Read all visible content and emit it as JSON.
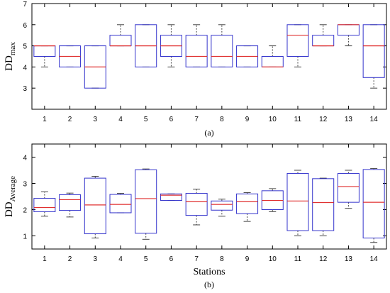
{
  "chart_data": [
    {
      "type": "boxplot",
      "caption": "(a)",
      "ylabel_main": "DD",
      "ylabel_sub": "max",
      "xlabel": "",
      "categories": [
        "1",
        "2",
        "3",
        "4",
        "5",
        "6",
        "7",
        "8",
        "9",
        "10",
        "11",
        "12",
        "13",
        "14"
      ],
      "ylim": [
        2,
        7
      ],
      "yticks": [
        3,
        4,
        5,
        6,
        7
      ],
      "ytick_labels": [
        "3",
        "4",
        "5",
        "6",
        "7"
      ],
      "colors": {
        "box": "#3333cc",
        "median": "#e03030",
        "whisker": "#444444"
      },
      "boxes": [
        {
          "min": 4,
          "q1": 4.5,
          "median": 5,
          "q3": 5,
          "max": 5
        },
        {
          "min": 4,
          "q1": 4,
          "median": 4.5,
          "q3": 5,
          "max": 5
        },
        {
          "min": 3,
          "q1": 3,
          "median": 4,
          "q3": 5,
          "max": 5
        },
        {
          "min": 5,
          "q1": 5,
          "median": 5,
          "q3": 5.5,
          "max": 6
        },
        {
          "min": 4,
          "q1": 4,
          "median": 5,
          "q3": 6,
          "max": 6
        },
        {
          "min": 4,
          "q1": 4.5,
          "median": 5,
          "q3": 5.5,
          "max": 6
        },
        {
          "min": 4,
          "q1": 4,
          "median": 4.5,
          "q3": 5.5,
          "max": 6
        },
        {
          "min": 4,
          "q1": 4,
          "median": 4.5,
          "q3": 5.5,
          "max": 6
        },
        {
          "min": 4,
          "q1": 4,
          "median": 4.5,
          "q3": 5,
          "max": 5
        },
        {
          "min": 4,
          "q1": 4,
          "median": 4,
          "q3": 4.5,
          "max": 5
        },
        {
          "min": 4,
          "q1": 4.5,
          "median": 5.5,
          "q3": 6,
          "max": 6
        },
        {
          "min": 5,
          "q1": 5,
          "median": 5,
          "q3": 5.5,
          "max": 6
        },
        {
          "min": 5,
          "q1": 5.5,
          "median": 6,
          "q3": 6,
          "max": 6
        },
        {
          "min": 3,
          "q1": 3.5,
          "median": 5,
          "q3": 6,
          "max": 6
        }
      ]
    },
    {
      "type": "boxplot",
      "caption": "(b)",
      "ylabel_main": "DD",
      "ylabel_sub": "Average",
      "xlabel": "Stations",
      "categories": [
        "1",
        "2",
        "3",
        "4",
        "5",
        "6",
        "7",
        "8",
        "9",
        "10",
        "11",
        "12",
        "13",
        "14"
      ],
      "ylim": [
        0.5,
        4.5
      ],
      "yticks": [
        1,
        2,
        3,
        4
      ],
      "ytick_labels": [
        "1",
        "2",
        "3",
        "4"
      ],
      "colors": {
        "box": "#3333cc",
        "median": "#e03030",
        "whisker": "#444444"
      },
      "boxes": [
        {
          "min": 1.75,
          "q1": 1.92,
          "median": 2.08,
          "q3": 2.43,
          "max": 2.68
        },
        {
          "min": 1.72,
          "q1": 1.97,
          "median": 2.38,
          "q3": 2.57,
          "max": 2.63
        },
        {
          "min": 0.92,
          "q1": 1.08,
          "median": 2.18,
          "q3": 3.2,
          "max": 3.27
        },
        {
          "min": 1.88,
          "q1": 1.88,
          "median": 2.2,
          "q3": 2.58,
          "max": 2.62
        },
        {
          "min": 0.87,
          "q1": 1.1,
          "median": 2.42,
          "q3": 3.52,
          "max": 3.55
        },
        {
          "min": 2.35,
          "q1": 2.35,
          "median": 2.55,
          "q3": 2.6,
          "max": 2.6
        },
        {
          "min": 1.42,
          "q1": 1.78,
          "median": 2.3,
          "q3": 2.62,
          "max": 2.78
        },
        {
          "min": 1.75,
          "q1": 1.98,
          "median": 2.2,
          "q3": 2.33,
          "max": 2.4
        },
        {
          "min": 1.55,
          "q1": 1.85,
          "median": 2.3,
          "q3": 2.6,
          "max": 2.65
        },
        {
          "min": 1.92,
          "q1": 2.0,
          "median": 2.35,
          "q3": 2.72,
          "max": 2.8
        },
        {
          "min": 1.0,
          "q1": 1.2,
          "median": 2.33,
          "q3": 3.38,
          "max": 3.5
        },
        {
          "min": 1.0,
          "q1": 1.2,
          "median": 2.27,
          "q3": 3.18,
          "max": 3.2
        },
        {
          "min": 2.05,
          "q1": 2.28,
          "median": 2.88,
          "q3": 3.38,
          "max": 3.5
        },
        {
          "min": 0.75,
          "q1": 0.92,
          "median": 2.28,
          "q3": 3.53,
          "max": 3.57
        }
      ]
    }
  ]
}
